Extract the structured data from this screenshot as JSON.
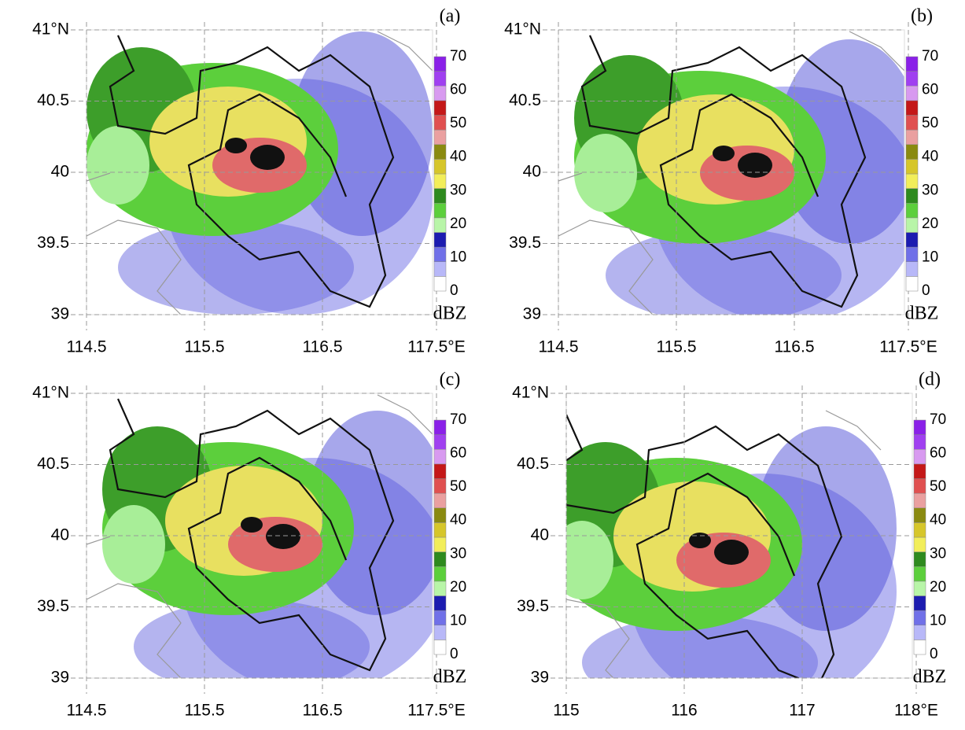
{
  "panels": [
    {
      "label": "(a)",
      "lat_ticks": [
        "41°N",
        "40.5",
        "40",
        "39.5",
        "39"
      ],
      "lon_ticks": [
        "114.5",
        "115.5",
        "116.5",
        "117.5°E"
      ],
      "colorbar_ticks": [
        0,
        10,
        20,
        30,
        40,
        50,
        60,
        70
      ],
      "unit": "dBZ"
    },
    {
      "label": "(b)",
      "lat_ticks": [
        "41°N",
        "40.5",
        "40",
        "39.5",
        "39"
      ],
      "lon_ticks": [
        "114.5",
        "115.5",
        "116.5",
        "117.5°E"
      ],
      "colorbar_ticks": [
        0,
        10,
        20,
        30,
        40,
        50,
        60,
        70
      ],
      "unit": "dBZ"
    },
    {
      "label": "(c)",
      "lat_ticks": [
        "41°N",
        "40.5",
        "40",
        "39.5",
        "39"
      ],
      "lon_ticks": [
        "114.5",
        "115.5",
        "116.5",
        "117.5°E"
      ],
      "colorbar_ticks": [
        0,
        10,
        20,
        30,
        40,
        50,
        60,
        70
      ],
      "unit": "dBZ"
    },
    {
      "label": "(d)",
      "lat_ticks": [
        "41°N",
        "40.5",
        "40",
        "39.5",
        "39"
      ],
      "lon_ticks": [
        "115",
        "116",
        "117",
        "118°E"
      ],
      "colorbar_ticks": [
        0,
        10,
        20,
        30,
        40,
        50,
        60,
        70
      ],
      "unit": "dBZ"
    }
  ],
  "colorbar_colors": [
    "#ffffff",
    "#b8b8f8",
    "#7070e8",
    "#1c1cb0",
    "#b8f5a8",
    "#5ccf3c",
    "#2e8a1e",
    "#f2ee5a",
    "#d6c62a",
    "#8a8a10",
    "#eaa0a0",
    "#e05050",
    "#c41818",
    "#d89af0",
    "#a040f0",
    "#8a20e8"
  ]
}
